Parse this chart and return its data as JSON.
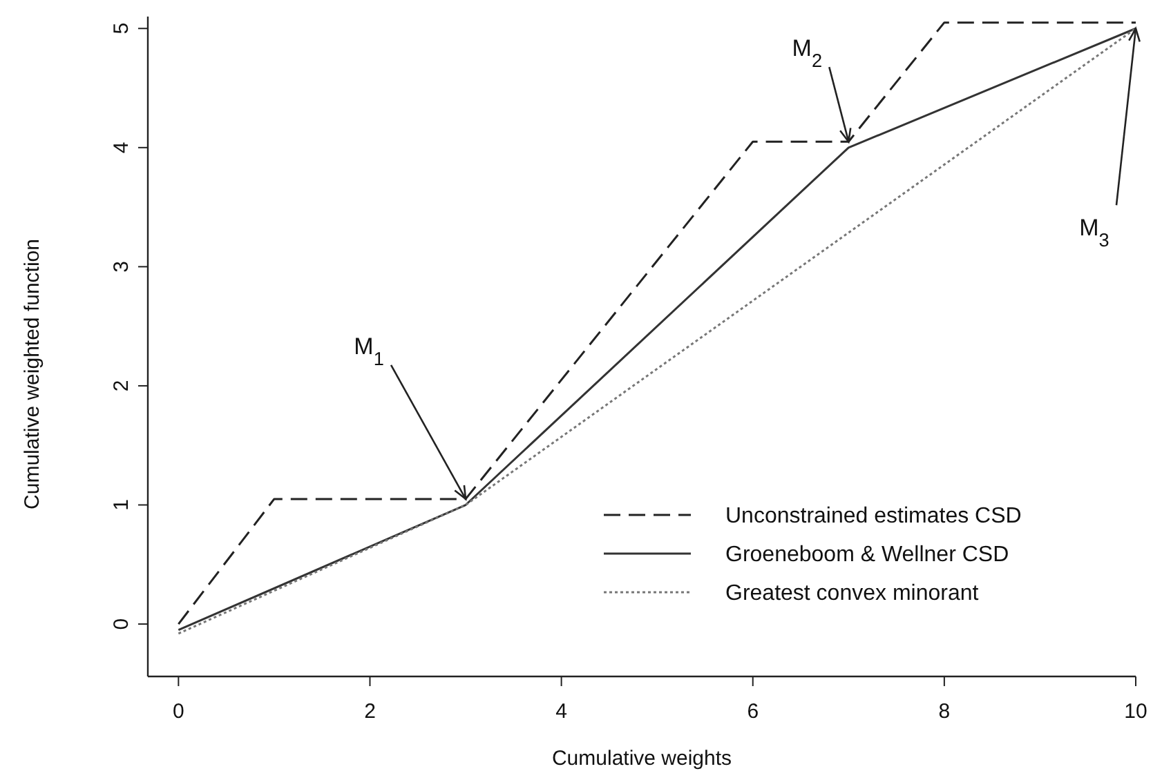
{
  "chart_data": {
    "type": "line",
    "xlabel": "Cumulative weights",
    "ylabel": "Cumulative weighted function",
    "xlim": [
      -0.32,
      10
    ],
    "ylim": [
      -0.44,
      5.1
    ],
    "xticks": [
      0,
      2,
      4,
      6,
      8,
      10
    ],
    "yticks": [
      0,
      1,
      2,
      3,
      4,
      5
    ],
    "grid": false,
    "legend": "bottom right",
    "marker": "none",
    "series": [
      {
        "name": "Unconstrained estimates CSD",
        "color": "#222222",
        "line_style": "dashed",
        "x": [
          0,
          1,
          3,
          6,
          7,
          8,
          10
        ],
        "values": [
          0,
          1.05,
          1.05,
          4.05,
          4.05,
          5.05,
          5.05
        ]
      },
      {
        "name": "Groeneboom & Wellner CSD",
        "color": "#333333",
        "line_style": "solid",
        "x": [
          0,
          3,
          7,
          10
        ],
        "values": [
          -0.05,
          1,
          4,
          5
        ]
      },
      {
        "name": "Greatest convex minorant",
        "color": "#777777",
        "line_style": "dotted",
        "x": [
          0,
          3,
          10
        ],
        "values": [
          -0.08,
          1,
          5
        ]
      }
    ],
    "annotations": [
      {
        "text": "M$_{1}$",
        "x": 3,
        "y": 1.05
      },
      {
        "text": "M$_{2}$",
        "x": 7,
        "y": 4.05
      },
      {
        "text": "M$_{3}$",
        "x": 10,
        "y": 5
      }
    ]
  }
}
